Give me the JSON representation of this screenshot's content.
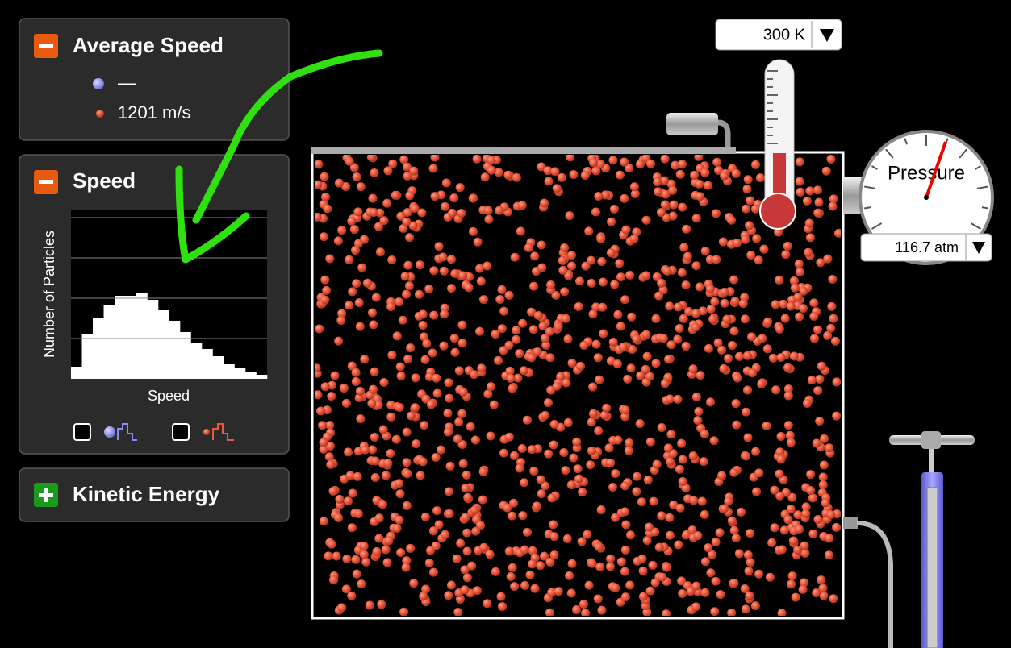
{
  "average_speed_panel": {
    "title": "Average Speed",
    "heavy_value": "—",
    "light_value": "1201 m/s"
  },
  "speed_panel": {
    "title": "Speed"
  },
  "chart_data": {
    "type": "histogram",
    "ylabel": "Number of Particles",
    "xlabel": "Speed",
    "values": [
      0.3,
      1.1,
      1.5,
      1.84,
      2.06,
      2.06,
      2.14,
      1.96,
      1.7,
      1.44,
      1.16,
      0.9,
      0.74,
      0.56,
      0.36,
      0.26,
      0.18,
      0.1
    ],
    "ylim": [
      0,
      4
    ],
    "yticks": [
      1,
      2,
      3,
      4
    ],
    "grid": true,
    "color": "#ffffff"
  },
  "kinetic_energy_panel": {
    "title": "Kinetic Energy"
  },
  "temperature": {
    "readout": "300 K"
  },
  "pressure": {
    "label": "Pressure",
    "readout": "116.7 atm"
  }
}
